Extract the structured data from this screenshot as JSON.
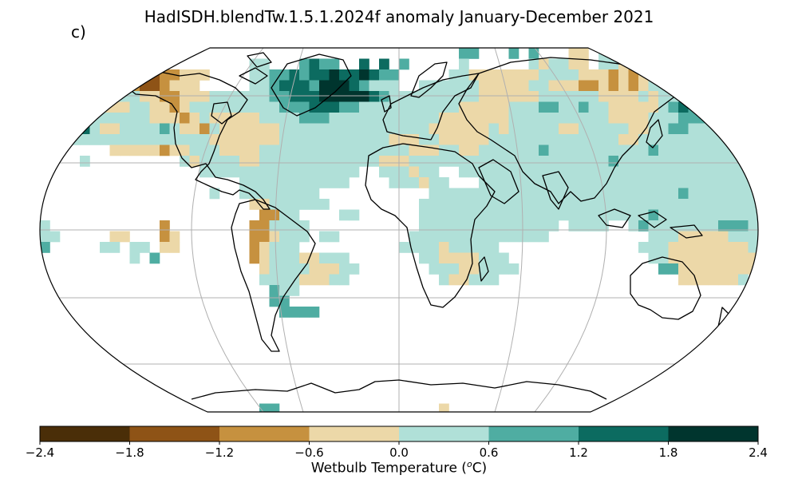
{
  "title": "HadISDH.blendTw.1.5.1.2024f anomaly January-December 2021",
  "panel_label": "c)",
  "colorbar": {
    "label_text": "Wetbulb Temperature (",
    "label_sup": "o",
    "label_unit": "C)",
    "ticks": [
      "−2.4",
      "−1.8",
      "−1.2",
      "−0.6",
      "0.0",
      "0.6",
      "1.2",
      "1.8",
      "2.4"
    ],
    "colors": [
      "#4a2e08",
      "#8e5316",
      "#c6913f",
      "#ecd8a8",
      "#b0e0d8",
      "#4fada2",
      "#0c6b60",
      "#00352e"
    ]
  },
  "map": {
    "projection": "Robinson",
    "gridlines": true,
    "ocean_color": "#ffffff",
    "coast_color": "#000000"
  }
}
